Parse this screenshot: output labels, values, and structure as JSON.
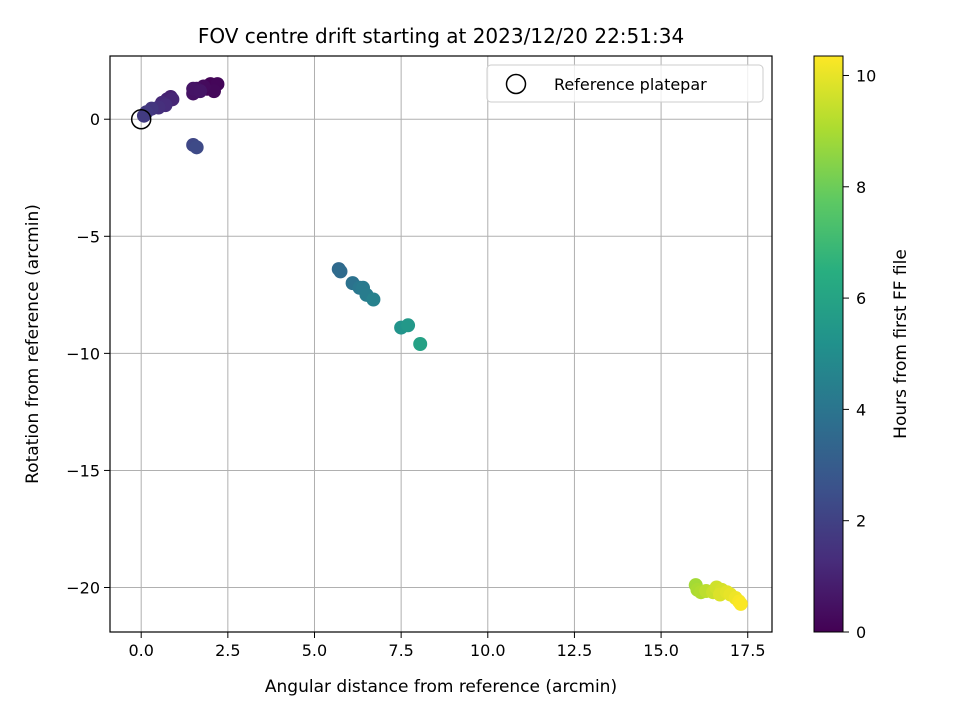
{
  "chart_data": {
    "type": "scatter",
    "title": "FOV centre drift starting at 2023/12/20 22:51:34",
    "xlabel": "Angular distance from reference (arcmin)",
    "ylabel": "Rotation from reference (arcmin)",
    "xlim": [
      -0.9,
      18.2
    ],
    "ylim": [
      -21.9,
      2.7
    ],
    "x_ticks": [
      0.0,
      2.5,
      5.0,
      7.5,
      10.0,
      12.5,
      15.0,
      17.5
    ],
    "x_tick_labels": [
      "0.0",
      "2.5",
      "5.0",
      "7.5",
      "10.0",
      "12.5",
      "15.0",
      "17.5"
    ],
    "y_ticks": [
      0,
      -5,
      -10,
      -15,
      -20
    ],
    "y_tick_labels": [
      "0",
      "−5",
      "−10",
      "−15",
      "−20"
    ],
    "grid": true,
    "legend": {
      "placement": "upper-right",
      "entries": [
        {
          "label": "Reference platepar",
          "marker": "open-circle",
          "color": "#000000"
        }
      ]
    },
    "reference_point": {
      "x": 0.0,
      "y": 0.0
    },
    "colorbar": {
      "label": "Hours from first FF file",
      "range": [
        0,
        10.35
      ],
      "ticks": [
        0,
        2,
        4,
        6,
        8,
        10
      ],
      "tick_labels": [
        "0",
        "2",
        "4",
        "6",
        "8",
        "10"
      ],
      "colormap": "viridis"
    },
    "points": [
      {
        "x": 1.9,
        "y": 1.3,
        "t": 0.05
      },
      {
        "x": 2.0,
        "y": 1.5,
        "t": 0.1
      },
      {
        "x": 2.2,
        "y": 1.5,
        "t": 0.15
      },
      {
        "x": 2.1,
        "y": 1.2,
        "t": 0.2
      },
      {
        "x": 1.8,
        "y": 1.4,
        "t": 0.3
      },
      {
        "x": 1.6,
        "y": 1.3,
        "t": 0.4
      },
      {
        "x": 1.5,
        "y": 1.1,
        "t": 0.5
      },
      {
        "x": 1.5,
        "y": 1.3,
        "t": 0.55
      },
      {
        "x": 1.7,
        "y": 1.2,
        "t": 0.6
      },
      {
        "x": 0.85,
        "y": 0.95,
        "t": 0.9
      },
      {
        "x": 0.75,
        "y": 0.85,
        "t": 1.0
      },
      {
        "x": 0.9,
        "y": 0.85,
        "t": 1.1
      },
      {
        "x": 0.6,
        "y": 0.7,
        "t": 1.2
      },
      {
        "x": 0.7,
        "y": 0.6,
        "t": 1.3
      },
      {
        "x": 0.5,
        "y": 0.5,
        "t": 1.4
      },
      {
        "x": 0.3,
        "y": 0.45,
        "t": 1.6
      },
      {
        "x": 0.15,
        "y": 0.3,
        "t": 1.7
      },
      {
        "x": 0.08,
        "y": 0.15,
        "t": 1.8
      },
      {
        "x": 1.5,
        "y": -1.1,
        "t": 2.2
      },
      {
        "x": 1.6,
        "y": -1.2,
        "t": 2.3
      },
      {
        "x": 5.7,
        "y": -6.4,
        "t": 3.5
      },
      {
        "x": 5.75,
        "y": -6.5,
        "t": 3.6
      },
      {
        "x": 6.1,
        "y": -7.0,
        "t": 3.9
      },
      {
        "x": 6.3,
        "y": -7.2,
        "t": 4.1
      },
      {
        "x": 6.4,
        "y": -7.2,
        "t": 4.2
      },
      {
        "x": 6.5,
        "y": -7.5,
        "t": 4.3
      },
      {
        "x": 6.7,
        "y": -7.7,
        "t": 4.5
      },
      {
        "x": 7.5,
        "y": -8.9,
        "t": 5.3
      },
      {
        "x": 7.7,
        "y": -8.8,
        "t": 5.5
      },
      {
        "x": 8.05,
        "y": -9.6,
        "t": 5.9
      },
      {
        "x": 16.0,
        "y": -19.9,
        "t": 8.9
      },
      {
        "x": 16.05,
        "y": -20.1,
        "t": 9.0
      },
      {
        "x": 16.15,
        "y": -20.2,
        "t": 9.1
      },
      {
        "x": 16.3,
        "y": -20.15,
        "t": 9.3
      },
      {
        "x": 16.5,
        "y": -20.2,
        "t": 9.5
      },
      {
        "x": 16.6,
        "y": -20.0,
        "t": 9.6
      },
      {
        "x": 16.75,
        "y": -20.1,
        "t": 9.7
      },
      {
        "x": 16.7,
        "y": -20.3,
        "t": 9.8
      },
      {
        "x": 16.9,
        "y": -20.2,
        "t": 9.9
      },
      {
        "x": 17.0,
        "y": -20.3,
        "t": 10.0
      },
      {
        "x": 17.15,
        "y": -20.45,
        "t": 10.1
      },
      {
        "x": 17.25,
        "y": -20.6,
        "t": 10.25
      },
      {
        "x": 17.3,
        "y": -20.7,
        "t": 10.3
      }
    ]
  }
}
